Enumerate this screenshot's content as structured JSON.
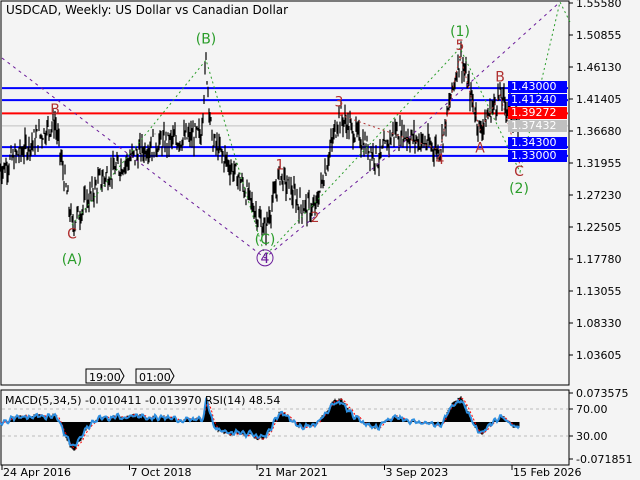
{
  "header": {
    "title": "USDCAD, Weekly:  US Dollar vs Canadian Dollar"
  },
  "indicator": {
    "label": "MACD(5,34,5) -0.010411 -0.013970 RSI(14) 48.54"
  },
  "time_tags": [
    "19:00",
    "01:00"
  ],
  "colors": {
    "background": "#f4f4f4",
    "bars": "#000000",
    "level_blue": "#0000ff",
    "level_red": "#ff0000",
    "bid_gray": "#c0c0c0",
    "wave_green": "#2a9d2a",
    "wave_red": "#b03030",
    "wave_purple": "#6a1b9a",
    "rsi": "#2f8fe0",
    "signal": "#ff0000"
  },
  "chart_data": {
    "type": "candlestick",
    "symbol": "USDCAD",
    "timeframe": "Weekly",
    "ylim": [
      1.01,
      1.5558
    ],
    "y_ticks": [
      "1.55580",
      "1.50855",
      "1.46130",
      "1.41405",
      "1.36680",
      "1.31955",
      "1.27230",
      "1.22505",
      "1.17780",
      "1.13055",
      "1.08330",
      "1.03605"
    ],
    "x_ticks": [
      "24 Apr 2016",
      "7 Oct 2018",
      "21 Mar 2021",
      "3 Sep 2023",
      "15 Feb 2026"
    ],
    "price_path": [
      [
        "2016-04-10",
        1.309
      ],
      [
        "2017-04-30",
        1.38
      ],
      [
        "2017-08-27",
        1.228
      ],
      [
        "2018-03-11",
        1.294
      ],
      [
        "2019-02-24",
        1.346
      ],
      [
        "2020-02-16",
        1.361
      ],
      [
        "2020-03-22",
        1.469
      ],
      [
        "2020-05-03",
        1.353
      ],
      [
        "2020-11-15",
        1.294
      ],
      [
        "2021-05-09",
        1.22
      ],
      [
        "2021-08-22",
        1.302
      ],
      [
        "2022-01-09",
        1.257
      ],
      [
        "2022-04-24",
        1.25
      ],
      [
        "2022-10-09",
        1.39
      ],
      [
        "2023-07-16",
        1.324
      ],
      [
        "2023-11-05",
        1.368
      ],
      [
        "2024-09-15",
        1.339
      ],
      [
        "2025-02-02",
        1.479
      ],
      [
        "2025-06-22",
        1.368
      ],
      [
        "2025-11-09",
        1.42
      ],
      [
        "2026-03-22",
        1.374
      ]
    ],
    "levels": [
      {
        "price": "1.43000",
        "color": "blue"
      },
      {
        "price": "1.41240",
        "color": "blue"
      },
      {
        "price": "1.39272",
        "color": "red"
      },
      {
        "price": "1.37432",
        "color": "gray"
      },
      {
        "price": "1.34300",
        "color": "blue"
      },
      {
        "price": "1.33000",
        "color": "blue"
      }
    ],
    "wave_labels": [
      {
        "text": "B",
        "date": "2017-04-30",
        "price": 1.392,
        "color": "red"
      },
      {
        "text": "C",
        "date": "2017-08-27",
        "price": 1.208,
        "color": "red"
      },
      {
        "text": "(A)",
        "date": "2017-08-27",
        "price": 1.17,
        "color": "green"
      },
      {
        "text": "(B)",
        "date": "2020-03-22",
        "price": 1.496,
        "color": "green"
      },
      {
        "text": "(C)",
        "date": "2021-05-09",
        "price": 1.2,
        "color": "green"
      },
      {
        "text": "4",
        "date": "2021-05-09",
        "price": 1.172,
        "color": "purple",
        "circled": true
      },
      {
        "text": "1",
        "date": "2021-08-22",
        "price": 1.31,
        "color": "red"
      },
      {
        "text": "2",
        "date": "2022-04-24",
        "price": 1.232,
        "color": "red"
      },
      {
        "text": "3",
        "date": "2022-10-09",
        "price": 1.403,
        "color": "red"
      },
      {
        "text": "4",
        "date": "2024-09-15",
        "price": 1.318,
        "color": "red"
      },
      {
        "text": "5",
        "date": "2025-02-02",
        "price": 1.492,
        "color": "red"
      },
      {
        "text": "(1)",
        "date": "2025-02-02",
        "price": 1.507,
        "color": "green"
      },
      {
        "text": "A",
        "date": "2025-06-22",
        "price": 1.335,
        "color": "red"
      },
      {
        "text": "B",
        "date": "2025-11-09",
        "price": 1.44,
        "color": "red"
      },
      {
        "text": "C",
        "date": "2026-03-22",
        "price": 1.3,
        "color": "red"
      },
      {
        "text": "(2)",
        "date": "2026-03-22",
        "price": 1.275,
        "color": "green"
      }
    ],
    "macd": {
      "params": "5,34,5",
      "main": -0.010411,
      "signal": -0.01397,
      "ylim": [
        -0.071851,
        0.073575
      ]
    },
    "rsi": {
      "period": 14,
      "value": 48.54,
      "levels": [
        "70.00",
        "30.00"
      ]
    },
    "indicator_ticks": [
      "0.073575",
      "70.00",
      "30.00",
      "-0.071851"
    ]
  }
}
